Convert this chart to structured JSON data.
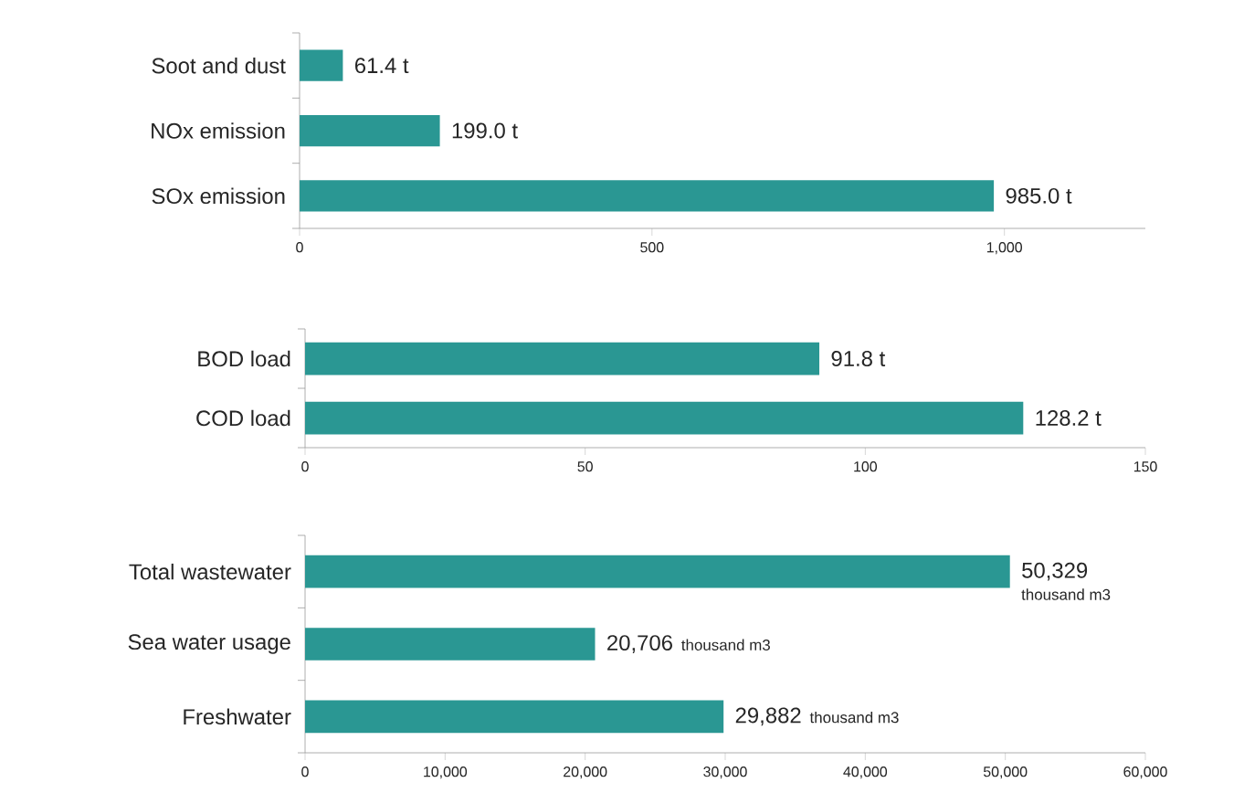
{
  "chart_data": [
    {
      "type": "bar",
      "orientation": "horizontal",
      "categories": [
        "Soot and dust",
        "NOx emission",
        "SOx emission"
      ],
      "values": [
        61.4,
        199.0,
        985.0
      ],
      "color": "#2a9793",
      "xlim": [
        0,
        1200
      ],
      "xticks": [
        0,
        500,
        {
          "value": 1000,
          "label": "1,000"
        }
      ],
      "value_labels": [
        "61.4 t",
        "199.0 t",
        "985.0 t"
      ]
    },
    {
      "type": "bar",
      "orientation": "horizontal",
      "categories": [
        "BOD load",
        "COD load"
      ],
      "values": [
        91.8,
        128.2
      ],
      "color": "#2a9793",
      "xlim": [
        0,
        150
      ],
      "xticks": [
        0,
        50,
        100,
        150
      ],
      "value_labels": [
        "91.8 t",
        "128.2 t"
      ]
    },
    {
      "type": "bar",
      "orientation": "horizontal",
      "categories": [
        "Total wastewater",
        "Sea water usage",
        "Freshwater"
      ],
      "values": [
        50329,
        20706,
        29882
      ],
      "color": "#2a9793",
      "xlim": [
        0,
        60000
      ],
      "xticks": [
        0,
        {
          "value": 10000,
          "label": "10,000"
        },
        {
          "value": 20000,
          "label": "20,000"
        },
        {
          "value": 30000,
          "label": "30,000"
        },
        {
          "value": 40000,
          "label": "40,000"
        },
        {
          "value": 50000,
          "label": "50,000"
        },
        {
          "value": 60000,
          "label": "60,000"
        }
      ],
      "value_labels": [
        "50,329",
        "20,706",
        "29,882"
      ],
      "annotations": [
        "thousand m3",
        "thousand m3",
        "thousand m3"
      ]
    }
  ]
}
